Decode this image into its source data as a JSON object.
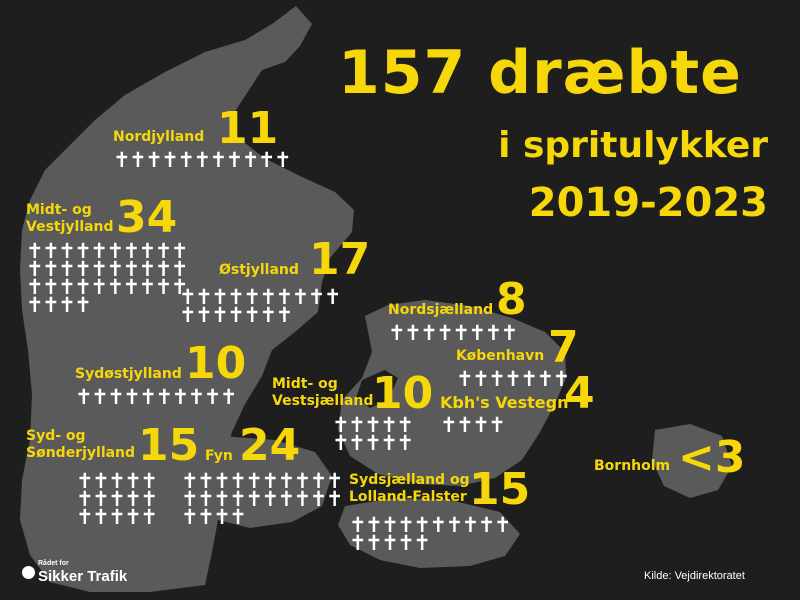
{
  "title": {
    "line1": "157 dræbte",
    "line2": "i spritulykker",
    "line3": "2019-2023"
  },
  "colors": {
    "background": "#1e1e1e",
    "land": "#5a5a5a",
    "accent": "#f5d70a",
    "cross": "#ffffff"
  },
  "regions": [
    {
      "name": "Nordjylland",
      "count": "11",
      "deaths": 11,
      "rows": [
        11
      ]
    },
    {
      "name": "Midt- og\nVestjylland",
      "count": "34",
      "deaths": 34,
      "rows": [
        10,
        10,
        10,
        4
      ]
    },
    {
      "name": "Østjylland",
      "count": "17",
      "deaths": 17,
      "rows": [
        10,
        7
      ]
    },
    {
      "name": "Sydøstjylland",
      "count": "10",
      "deaths": 10,
      "rows": [
        10
      ]
    },
    {
      "name": "Syd- og\nSønderjylland",
      "count": "15",
      "deaths": 15,
      "rows": [
        5,
        5,
        5
      ]
    },
    {
      "name": "Fyn",
      "count": "24",
      "deaths": 24,
      "rows": [
        10,
        10,
        4
      ]
    },
    {
      "name": "Nordsjælland",
      "count": "8",
      "deaths": 8,
      "rows": [
        8
      ]
    },
    {
      "name": "København",
      "count": "7",
      "deaths": 7,
      "rows": [
        7
      ]
    },
    {
      "name": "Kbh's Vestegn",
      "count": "4",
      "deaths": 4,
      "rows": [
        4
      ]
    },
    {
      "name": "Midt- og\nVestsjælland",
      "count": "10",
      "deaths": 10,
      "rows": [
        5,
        5
      ]
    },
    {
      "name": "Sydsjælland og\nLolland-Falster",
      "count": "15",
      "deaths": 15,
      "rows": [
        10,
        5
      ]
    },
    {
      "name": "Bornholm",
      "count": "<3",
      "deaths": null,
      "rows": []
    }
  ],
  "source": "Kilde: Vejdirektoratet",
  "logo": {
    "small": "Rådet for",
    "big": "Sikker Trafik"
  }
}
